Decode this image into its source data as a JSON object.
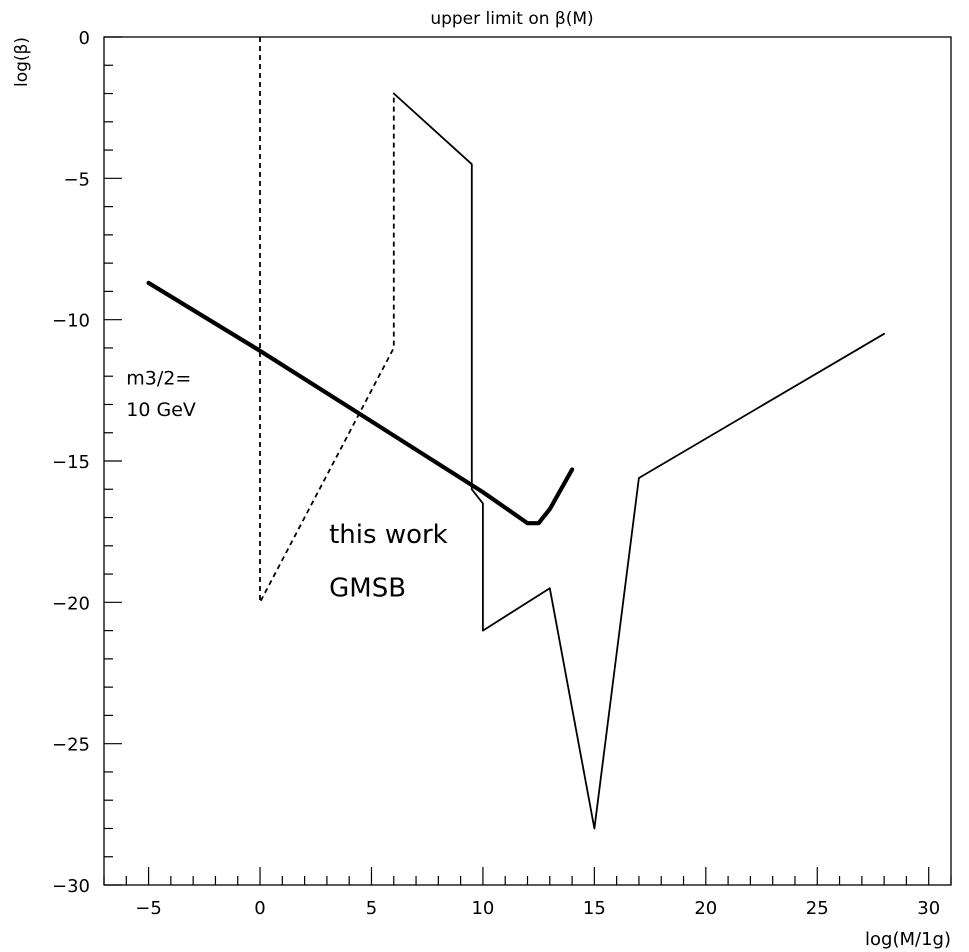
{
  "chart_data": {
    "type": "line",
    "title": "upper limit on β(M)",
    "xlabel": "log(M/1g)",
    "ylabel": "log(β)",
    "xlim": [
      -7,
      31
    ],
    "ylim": [
      -30,
      0
    ],
    "x_ticks": [
      -5,
      0,
      5,
      10,
      15,
      20,
      25,
      30
    ],
    "y_ticks": [
      0,
      -5,
      -10,
      -15,
      -20,
      -25,
      -30
    ],
    "grid": false,
    "series": [
      {
        "style": "solid-thin",
        "x": [
          6.0,
          9.5,
          9.5,
          10.0,
          10.0,
          13.0,
          15.0,
          17.0,
          28.0
        ],
        "y": [
          -2.0,
          -4.5,
          -16.0,
          -16.5,
          -21.0,
          -19.5,
          -28.0,
          -15.6,
          -10.5
        ]
      },
      {
        "style": "dashed",
        "x": [
          0.0,
          0.0,
          6.0,
          6.0
        ],
        "y": [
          0.0,
          -20.0,
          -11.0,
          -2.0
        ]
      },
      {
        "style": "solid-thick",
        "x": [
          -5.0,
          0.0,
          5.0,
          10.0,
          12.0,
          12.5,
          13.0,
          14.0
        ],
        "y": [
          -8.7,
          -11.1,
          -13.6,
          -16.1,
          -17.2,
          -17.2,
          -16.7,
          -15.3
        ]
      }
    ],
    "annotations": [
      {
        "text": "m3/2=",
        "x": -6.0,
        "y": -12.3,
        "size": "small"
      },
      {
        "text": "10 GeV",
        "x": -6.0,
        "y": -13.4,
        "size": "small"
      },
      {
        "text": "this work",
        "x": 3.1,
        "y": -17.9,
        "size": "large"
      },
      {
        "text": "GMSB",
        "x": 3.1,
        "y": -19.8,
        "size": "large"
      }
    ]
  }
}
